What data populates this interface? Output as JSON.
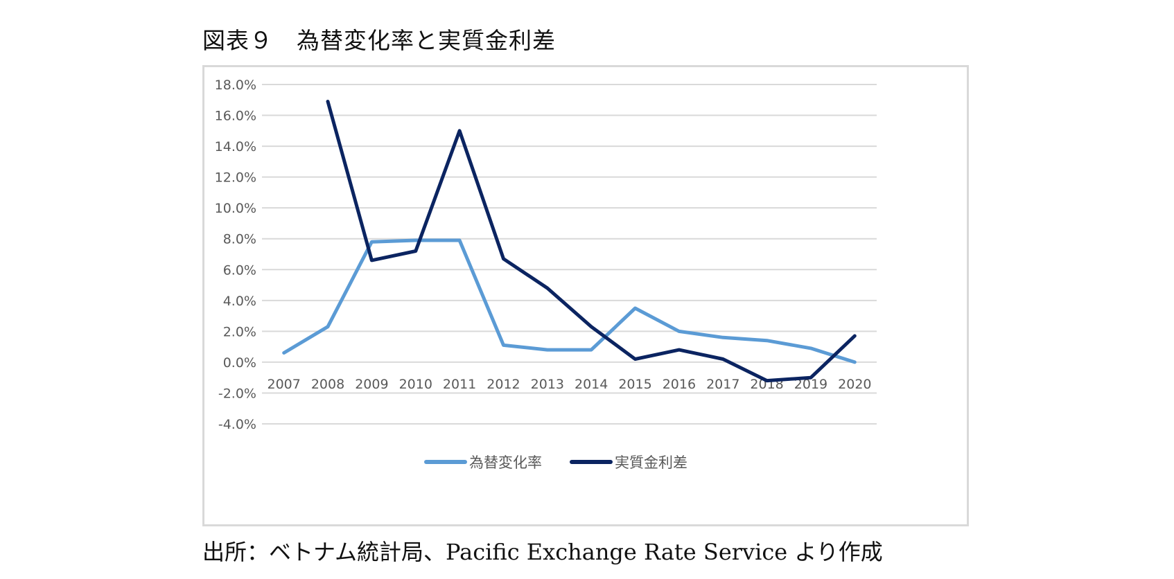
{
  "figure": {
    "title": "図表９　為替変化率と実質金利差",
    "source": "出所：ベトナム統計局、Pacific Exchange Rate Service より作成"
  },
  "chart_data": {
    "type": "line",
    "title": "",
    "xlabel": "",
    "ylabel": "",
    "categories": [
      "2007",
      "2008",
      "2009",
      "2010",
      "2011",
      "2012",
      "2013",
      "2014",
      "2015",
      "2016",
      "2017",
      "2018",
      "2019",
      "2020"
    ],
    "ylim": [
      -0.04,
      0.18
    ],
    "yticks": [
      0.18,
      0.16,
      0.14,
      0.12,
      0.1,
      0.08,
      0.06,
      0.04,
      0.02,
      0.0,
      -0.02,
      -0.04
    ],
    "ytick_labels": [
      "18.0%",
      "16.0%",
      "14.0%",
      "12.0%",
      "10.0%",
      "8.0%",
      "6.0%",
      "4.0%",
      "2.0%",
      "0.0%",
      "-2.0%",
      "-4.0%"
    ],
    "grid": true,
    "legend_position": "bottom",
    "series": [
      {
        "name": "為替変化率",
        "color": "#5b9bd5",
        "values": [
          0.006,
          0.023,
          0.078,
          0.079,
          0.079,
          0.011,
          0.008,
          0.008,
          0.035,
          0.02,
          0.016,
          0.014,
          0.009,
          0.0
        ]
      },
      {
        "name": "実質金利差",
        "color": "#0b2461",
        "values": [
          null,
          0.169,
          0.066,
          0.072,
          0.15,
          0.067,
          0.048,
          0.023,
          0.002,
          0.008,
          0.002,
          -0.012,
          -0.01,
          0.017
        ]
      }
    ]
  }
}
